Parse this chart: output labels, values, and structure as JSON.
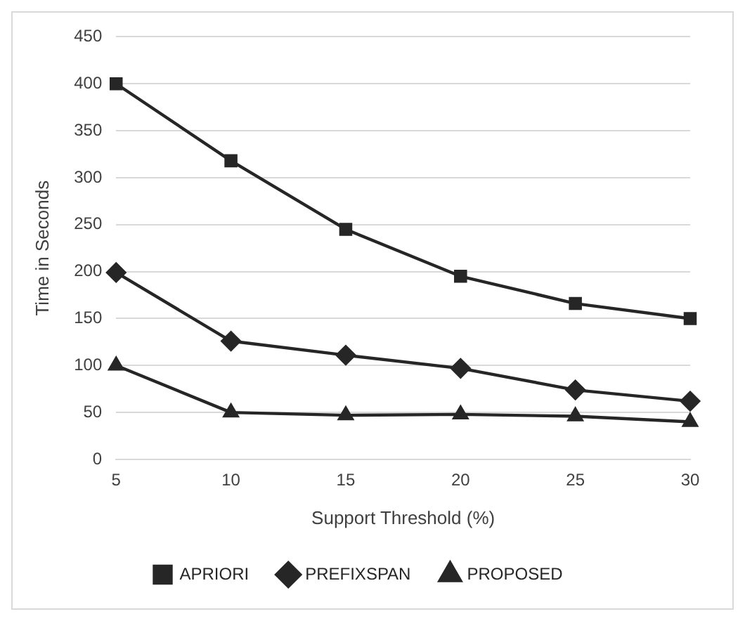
{
  "chart_data": {
    "type": "line",
    "xlabel": "Support Threshold (%)",
    "ylabel": "Time in Seconds",
    "categories": [
      "5",
      "10",
      "15",
      "20",
      "25",
      "30"
    ],
    "series": [
      {
        "name": "APRIORI",
        "color": "#262626",
        "marker": "square",
        "values": [
          400,
          318,
          245,
          195,
          166,
          150
        ]
      },
      {
        "name": "PREFIXSPAN",
        "color": "#262626",
        "marker": "diamond",
        "values": [
          199,
          126,
          111,
          97,
          74,
          62
        ]
      },
      {
        "name": "PROPOSED",
        "color": "#262626",
        "marker": "triangle",
        "values": [
          100,
          50,
          47,
          48,
          46,
          40
        ]
      }
    ],
    "ylim": [
      0,
      450
    ],
    "yticks": [
      0,
      50,
      100,
      150,
      200,
      250,
      300,
      350,
      400,
      450
    ],
    "grid": "y",
    "legend": "bottom",
    "line_style": "solid"
  }
}
